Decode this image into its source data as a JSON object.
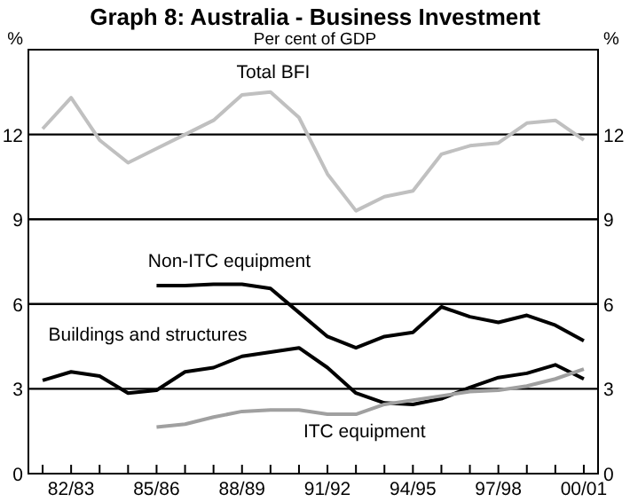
{
  "chart_data": {
    "type": "line",
    "title": "Graph 8: Australia - Business Investment",
    "subtitle": "Per cent of GDP",
    "ylabel": "%",
    "y2label": "%",
    "categories": [
      null,
      "82/83",
      null,
      null,
      "85/86",
      null,
      null,
      "88/89",
      null,
      null,
      "91/92",
      null,
      null,
      "94/95",
      null,
      null,
      "97/98",
      null,
      null,
      "00/01"
    ],
    "series": [
      {
        "name": "Total BFI",
        "color": "#c0c0c0",
        "values": [
          12.2,
          13.3,
          11.8,
          11.0,
          11.5,
          12.0,
          12.5,
          13.4,
          13.5,
          12.6,
          10.6,
          9.3,
          9.8,
          10.0,
          11.3,
          11.6,
          11.7,
          12.4,
          12.5,
          11.8
        ]
      },
      {
        "name": "Non-ITC equipment",
        "color": "#000000",
        "values": [
          null,
          null,
          null,
          null,
          6.65,
          6.65,
          6.7,
          6.7,
          6.55,
          5.7,
          4.85,
          4.45,
          4.85,
          5.0,
          5.9,
          5.55,
          5.35,
          5.6,
          5.25,
          4.7
        ]
      },
      {
        "name": "Buildings and structures",
        "color": "#000000",
        "values": [
          3.3,
          3.6,
          3.45,
          2.85,
          2.95,
          3.6,
          3.75,
          4.15,
          4.3,
          4.45,
          3.75,
          2.85,
          2.5,
          2.45,
          2.65,
          3.05,
          3.4,
          3.55,
          3.85,
          3.35
        ]
      },
      {
        "name": "ITC equipment",
        "color": "#a0a0a0",
        "values": [
          null,
          null,
          null,
          null,
          1.65,
          1.75,
          2.0,
          2.2,
          2.25,
          2.25,
          2.1,
          2.1,
          2.45,
          2.6,
          2.75,
          2.9,
          2.95,
          3.1,
          3.35,
          3.7
        ]
      }
    ],
    "ylim": [
      0,
      15
    ],
    "yticks": [
      0,
      3,
      6,
      9,
      12
    ],
    "y2lim": [
      0,
      15
    ],
    "y2ticks": [
      0,
      3,
      6,
      9,
      12
    ],
    "grid": "y",
    "marker": "none",
    "line_style": "solid"
  }
}
